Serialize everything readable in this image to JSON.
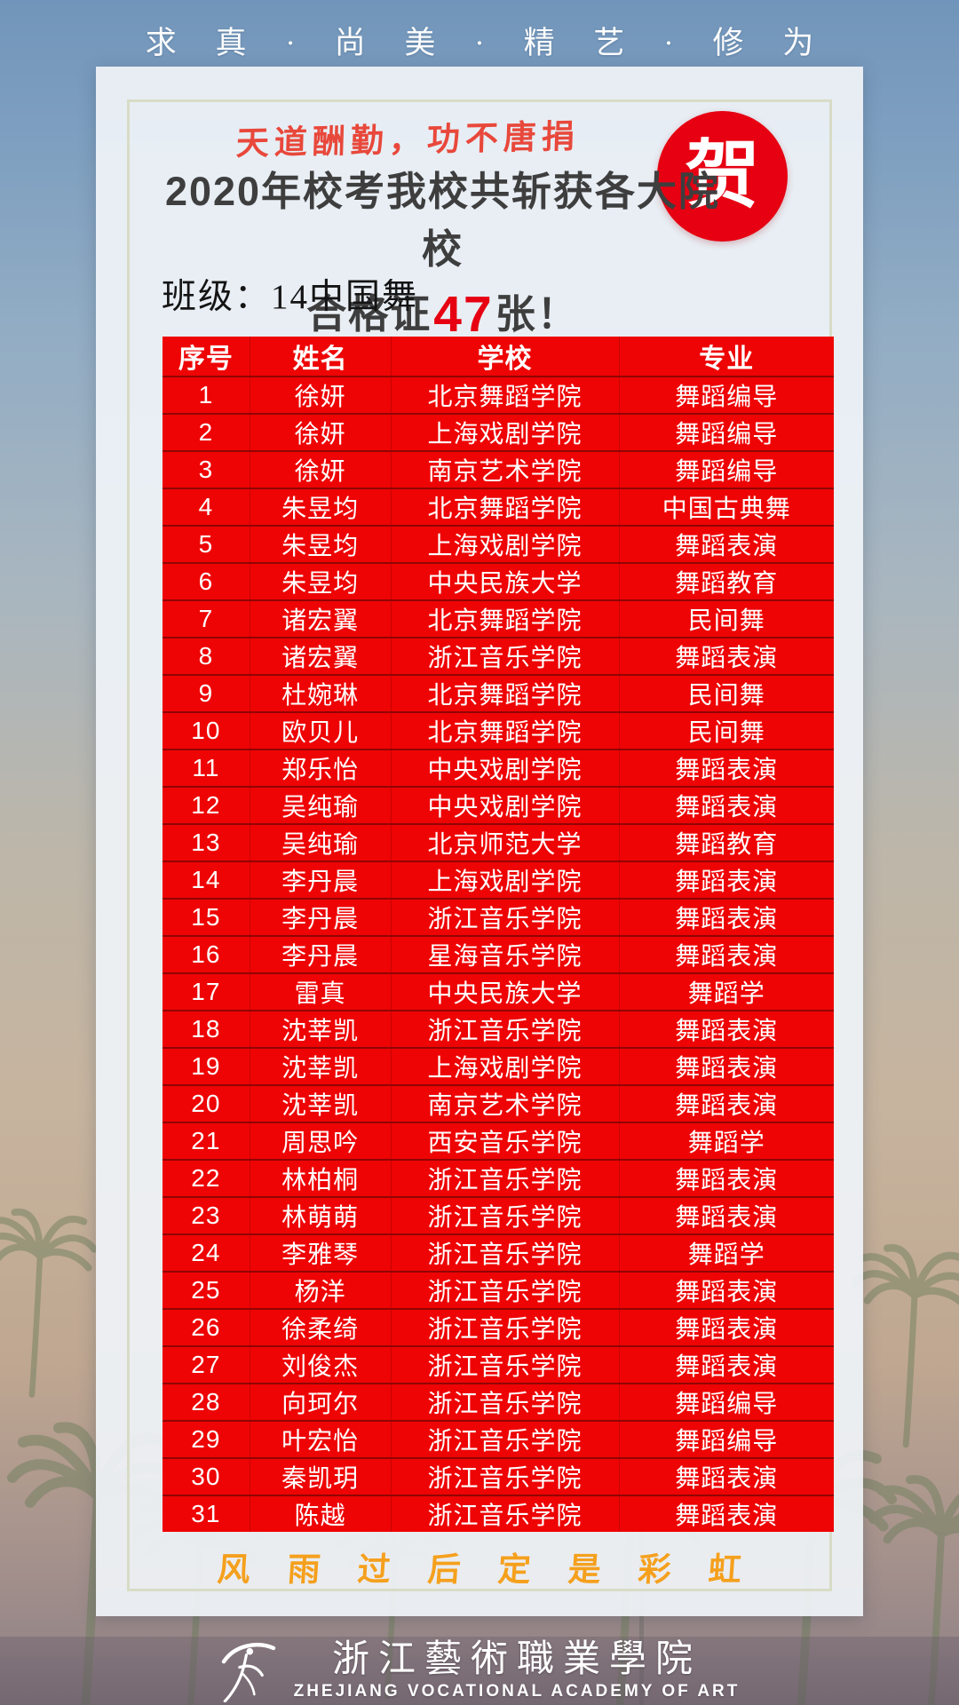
{
  "motto": "求真·尚美·精艺·修为",
  "hero": {
    "calligraphy": "天道酬勤，功不唐捐",
    "title_line1": "2020年校考我校共斩获各大院校",
    "title_line2_prefix": "合格证",
    "title_count": "47",
    "title_line2_suffix": "张！",
    "badge": "贺"
  },
  "class_info": {
    "label": "班级：14中国舞"
  },
  "table": {
    "headers": [
      "序号",
      "姓名",
      "学校",
      "专业"
    ],
    "rows": [
      [
        "1",
        "徐妍",
        "北京舞蹈学院",
        "舞蹈编导"
      ],
      [
        "2",
        "徐妍",
        "上海戏剧学院",
        "舞蹈编导"
      ],
      [
        "3",
        "徐妍",
        "南京艺术学院",
        "舞蹈编导"
      ],
      [
        "4",
        "朱昱均",
        "北京舞蹈学院",
        "中国古典舞"
      ],
      [
        "5",
        "朱昱均",
        "上海戏剧学院",
        "舞蹈表演"
      ],
      [
        "6",
        "朱昱均",
        "中央民族大学",
        "舞蹈教育"
      ],
      [
        "7",
        "诸宏翼",
        "北京舞蹈学院",
        "民间舞"
      ],
      [
        "8",
        "诸宏翼",
        "浙江音乐学院",
        "舞蹈表演"
      ],
      [
        "9",
        "杜婉琳",
        "北京舞蹈学院",
        "民间舞"
      ],
      [
        "10",
        "欧贝儿",
        "北京舞蹈学院",
        "民间舞"
      ],
      [
        "11",
        "郑乐怡",
        "中央戏剧学院",
        "舞蹈表演"
      ],
      [
        "12",
        "吴纯瑜",
        "中央戏剧学院",
        "舞蹈表演"
      ],
      [
        "13",
        "吴纯瑜",
        "北京师范大学",
        "舞蹈教育"
      ],
      [
        "14",
        "李丹晨",
        "上海戏剧学院",
        "舞蹈表演"
      ],
      [
        "15",
        "李丹晨",
        "浙江音乐学院",
        "舞蹈表演"
      ],
      [
        "16",
        "李丹晨",
        "星海音乐学院",
        "舞蹈表演"
      ],
      [
        "17",
        "雷真",
        "中央民族大学",
        "舞蹈学"
      ],
      [
        "18",
        "沈莘凯",
        "浙江音乐学院",
        "舞蹈表演"
      ],
      [
        "19",
        "沈莘凯",
        "上海戏剧学院",
        "舞蹈表演"
      ],
      [
        "20",
        "沈莘凯",
        "南京艺术学院",
        "舞蹈表演"
      ],
      [
        "21",
        "周思吟",
        "西安音乐学院",
        "舞蹈学"
      ],
      [
        "22",
        "林柏桐",
        "浙江音乐学院",
        "舞蹈表演"
      ],
      [
        "23",
        "林萌萌",
        "浙江音乐学院",
        "舞蹈表演"
      ],
      [
        "24",
        "李雅琴",
        "浙江音乐学院",
        "舞蹈学"
      ],
      [
        "25",
        "杨洋",
        "浙江音乐学院",
        "舞蹈表演"
      ],
      [
        "26",
        "徐柔绮",
        "浙江音乐学院",
        "舞蹈表演"
      ],
      [
        "27",
        "刘俊杰",
        "浙江音乐学院",
        "舞蹈表演"
      ],
      [
        "28",
        "向珂尔",
        "浙江音乐学院",
        "舞蹈编导"
      ],
      [
        "29",
        "叶宏怡",
        "浙江音乐学院",
        "舞蹈编导"
      ],
      [
        "30",
        "秦凯玥",
        "浙江音乐学院",
        "舞蹈表演"
      ],
      [
        "31",
        "陈越",
        "浙江音乐学院",
        "舞蹈表演"
      ]
    ]
  },
  "slogan": "风雨过后定是彩虹",
  "footer": {
    "academy_cn": "浙江藝術職業學院",
    "academy_en": "ZHEJIANG VOCATIONAL ACADEMY OF ART"
  },
  "colors": {
    "table_red": "#ee0404",
    "badge_red": "#e60012",
    "count_red": "#e60012",
    "calligraphy_red": "#e8483b",
    "slogan_orange": "#f5a01d",
    "frame_olive": "#d8dcc6"
  }
}
